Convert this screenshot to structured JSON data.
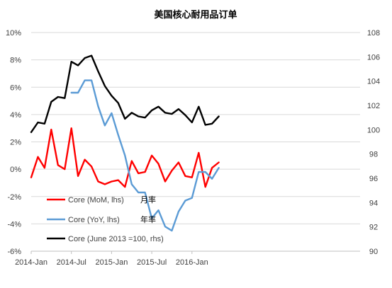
{
  "chart_data": {
    "type": "line",
    "title": "美国核心耐用品订单",
    "x": [
      "2014-Jan",
      "2014-Feb",
      "2014-Mar",
      "2014-Apr",
      "2014-May",
      "2014-Jun",
      "2014-Jul",
      "2014-Aug",
      "2014-Sep",
      "2014-Oct",
      "2014-Nov",
      "2014-Dec",
      "2015-Jan",
      "2015-Feb",
      "2015-Mar",
      "2015-Apr",
      "2015-May",
      "2015-Jun",
      "2015-Jul",
      "2015-Aug",
      "2015-Sep",
      "2015-Oct",
      "2015-Nov",
      "2015-Dec",
      "2016-Jan",
      "2016-Feb",
      "2016-Mar",
      "2016-Apr",
      "2016-May",
      "2016-Jun",
      "2016-Jul",
      "2016-Aug",
      "2016-Sep",
      "2016-Oct",
      "2016-Nov",
      "2016-Dec",
      "2017-Jan",
      "2017-Feb",
      "2017-Mar"
    ],
    "x_tick_labels": [
      "2014-Jan",
      "2014-Jul",
      "2015-Jan",
      "2015-Jul",
      "2016-Jan"
    ],
    "y_left": {
      "range": [
        -6,
        10
      ],
      "step": 2,
      "unit": "%",
      "tick_labels": [
        "-6%",
        "-4%",
        "-2%",
        "0%",
        "2%",
        "4%",
        "6%",
        "8%",
        "10%"
      ]
    },
    "y_right": {
      "range": [
        90,
        108
      ],
      "step": 2,
      "tick_labels": [
        "90",
        "92",
        "94",
        "96",
        "98",
        "100",
        "102",
        "104",
        "106",
        "108"
      ]
    },
    "grid": "horizontal",
    "legend_position": "bottom-left",
    "series": [
      {
        "name": "Core (MoM, lhs)",
        "label_cn": "月率",
        "axis": "left",
        "color": "#ff0000",
        "values": [
          -0.6,
          0.9,
          0.1,
          2.9,
          0.3,
          0.0,
          3.0,
          -0.5,
          0.7,
          0.2,
          -0.9,
          -1.1,
          -0.9,
          -0.8,
          -1.3,
          0.6,
          -0.3,
          -0.2,
          1.0,
          0.4,
          -0.9,
          -0.1,
          0.5,
          -0.5,
          -0.6,
          1.2,
          -1.3,
          0.1,
          0.5,
          null,
          null,
          null,
          null,
          null,
          null,
          null,
          null,
          null,
          null
        ]
      },
      {
        "name": "Core (YoY, lhs)",
        "label_cn": "年率",
        "axis": "left",
        "color": "#5b9bd5",
        "values": [
          null,
          null,
          null,
          null,
          null,
          null,
          5.6,
          5.6,
          6.5,
          6.5,
          4.6,
          3.2,
          4.1,
          2.5,
          1.0,
          -1.1,
          -1.7,
          -1.7,
          -3.6,
          -3.0,
          -4.2,
          -4.5,
          -3.1,
          -2.3,
          -2.1,
          -0.2,
          -0.2,
          -0.7,
          0.1,
          null,
          null,
          null,
          null,
          null,
          null,
          null,
          null,
          null,
          null
        ]
      },
      {
        "name": "Core (June 2013 =100, rhs)",
        "label_cn": "",
        "axis": "right",
        "color": "#000000",
        "values": [
          99.8,
          100.6,
          100.5,
          102.3,
          102.7,
          102.6,
          105.6,
          105.3,
          105.9,
          106.1,
          104.8,
          103.6,
          102.8,
          102.2,
          100.9,
          101.4,
          101.1,
          101.0,
          101.6,
          101.9,
          101.4,
          101.3,
          101.7,
          101.2,
          100.6,
          101.9,
          100.4,
          100.5,
          101.1,
          null,
          null,
          null,
          null,
          null,
          null,
          null,
          null,
          null,
          null
        ]
      }
    ]
  }
}
